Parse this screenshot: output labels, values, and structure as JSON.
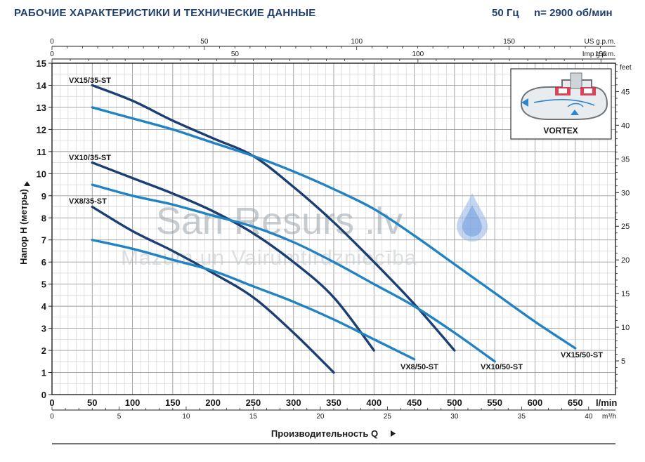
{
  "header": {
    "title": "РАБОЧИЕ ХАРАКТЕРИСТИКИ И ТЕХНИЧЕСКИЕ ДАННЫЕ",
    "frequency": "50 Гц",
    "speed": "n= 2900 об/мин"
  },
  "watermark": {
    "main": "San Resurs .lv",
    "sub": "Mazum un Vairumtirdzniecība"
  },
  "inset": {
    "label": "VORTEX",
    "icon": "vortex-impeller-diagram-icon"
  },
  "colors": {
    "dark_curves": "#1c3f73",
    "light_curves": "#2283c2",
    "grid": "#b9b9b9",
    "text": "#1a1a1a"
  },
  "chart_data": {
    "type": "line",
    "ylabel": "Напор H (метры)",
    "xlabel": "Производительность Q",
    "y_left": {
      "unit": "",
      "range": [
        0,
        15
      ],
      "ticks": [
        "0",
        "1",
        "2",
        "3",
        "4",
        "5",
        "6",
        "7",
        "8",
        "9",
        "10",
        "11",
        "12",
        "13",
        "14",
        "15"
      ]
    },
    "y_right": {
      "unit": "feet",
      "ticks": [
        "5",
        "10",
        "15",
        "20",
        "25",
        "30",
        "35",
        "40",
        "45"
      ],
      "values": [
        5,
        10,
        15,
        20,
        25,
        30,
        35,
        40,
        45
      ]
    },
    "x_lmin": {
      "unit": "l/min",
      "range": [
        0,
        700
      ],
      "ticks": [
        "0",
        "50",
        "100",
        "150",
        "200",
        "250",
        "300",
        "350",
        "400",
        "450",
        "500",
        "550",
        "600",
        "650"
      ],
      "values": [
        0,
        50,
        100,
        150,
        200,
        250,
        300,
        350,
        400,
        450,
        500,
        550,
        600,
        650
      ]
    },
    "x_m3h": {
      "unit": "m³/h",
      "ticks": [
        "0",
        "5",
        "10",
        "15",
        "20",
        "25",
        "30",
        "35",
        "40"
      ],
      "values": [
        0,
        5,
        10,
        15,
        20,
        25,
        30,
        35,
        40
      ]
    },
    "x_usgpm": {
      "unit": "US g.p.m.",
      "ticks": [
        "0",
        "50",
        "100",
        "150"
      ],
      "values": [
        0,
        50,
        100,
        150
      ]
    },
    "x_impgpm": {
      "unit": "Imp g.p.m.",
      "ticks": [
        "0",
        "50",
        "100",
        "150"
      ],
      "values": [
        0,
        50,
        100,
        150
      ]
    },
    "series": [
      {
        "name": "VX15/35-ST",
        "color": "dark",
        "x": [
          50,
          100,
          150,
          200,
          250,
          300,
          350,
          400,
          450,
          500
        ],
        "y": [
          14.0,
          13.3,
          12.4,
          11.6,
          10.8,
          9.4,
          7.8,
          6.0,
          4.1,
          2.0
        ]
      },
      {
        "name": "VX10/35-ST",
        "color": "dark",
        "x": [
          50,
          100,
          150,
          200,
          250,
          300,
          350,
          400
        ],
        "y": [
          10.5,
          9.8,
          9.1,
          8.3,
          7.3,
          6.0,
          4.4,
          2.0
        ]
      },
      {
        "name": "VX8/35-ST",
        "color": "dark",
        "x": [
          50,
          100,
          150,
          200,
          250,
          300,
          350
        ],
        "y": [
          8.5,
          7.4,
          6.5,
          5.5,
          4.4,
          2.8,
          1.0
        ]
      },
      {
        "name": "VX15/50-ST",
        "color": "light",
        "x": [
          50,
          100,
          150,
          200,
          250,
          300,
          350,
          400,
          450,
          500,
          550,
          600,
          650
        ],
        "y": [
          13.0,
          12.5,
          12.0,
          11.4,
          10.8,
          10.1,
          9.3,
          8.4,
          7.2,
          5.9,
          4.6,
          3.3,
          2.1
        ]
      },
      {
        "name": "VX10/50-ST",
        "color": "light",
        "x": [
          50,
          100,
          150,
          200,
          250,
          300,
          350,
          400,
          450,
          500,
          550
        ],
        "y": [
          9.5,
          9.0,
          8.6,
          8.1,
          7.6,
          6.9,
          6.0,
          5.0,
          4.0,
          2.8,
          1.5
        ]
      },
      {
        "name": "VX8/50-ST",
        "color": "light",
        "x": [
          50,
          100,
          150,
          200,
          250,
          300,
          350,
          400,
          450
        ],
        "y": [
          7.0,
          6.6,
          6.1,
          5.6,
          4.9,
          4.2,
          3.4,
          2.5,
          1.6
        ]
      }
    ],
    "labels": {
      "VX15/35-ST": "VX15/35-ST",
      "VX10/35-ST": "VX10/35-ST",
      "VX8/35-ST": "VX8/35-ST",
      "VX15/50-ST": "VX15/50-ST",
      "VX10/50-ST": "VX10/50-ST",
      "VX8/50-ST": "VX8/50-ST"
    },
    "grid": true
  }
}
